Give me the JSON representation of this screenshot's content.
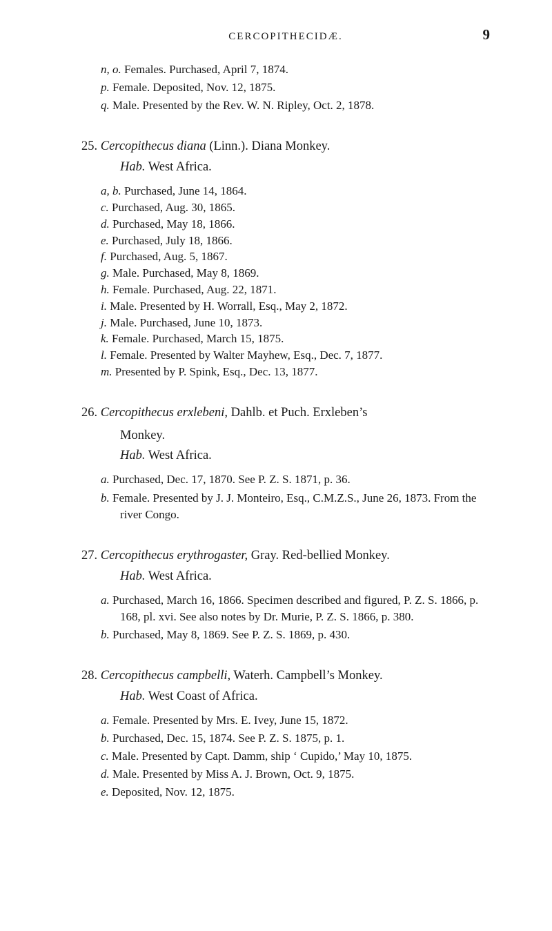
{
  "pageNumber": "9",
  "runningHead": "CERCOPITHECIDÆ.",
  "preEntries": [
    {
      "label": "n, o.",
      "text": "Females.  Purchased, April 7, 1874."
    },
    {
      "label": "p.",
      "text": "Female.  Deposited, Nov. 12, 1875."
    },
    {
      "label": "q.",
      "text": "Male.  Presented by the Rev. W. N. Ripley, Oct. 2, 1878."
    }
  ],
  "species": [
    {
      "num": "25.",
      "nameItalic": "Cercopithecus diana",
      "nameRest": " (Linn.).   Diana Monkey.",
      "hab": "Hab.",
      "habText": "  West Africa.",
      "items": [
        {
          "label": "a, b.",
          "text": "Purchased, June 14, 1864."
        },
        {
          "label": "c.",
          "text": "Purchased, Aug. 30, 1865."
        },
        {
          "label": "d.",
          "text": "Purchased, May 18, 1866."
        },
        {
          "label": "e.",
          "text": "Purchased, July 18, 1866."
        },
        {
          "label": "f.",
          "text": "Purchased, Aug. 5, 1867."
        },
        {
          "label": "g.",
          "text": "Male.  Purchased, May 8, 1869."
        },
        {
          "label": "h.",
          "text": "Female.  Purchased, Aug. 22, 1871."
        },
        {
          "label": "i.",
          "text": "Male.  Presented by H. Worrall, Esq., May 2, 1872."
        },
        {
          "label": "j.",
          "text": "Male.  Purchased, June 10, 1873."
        },
        {
          "label": "k.",
          "text": "Female.  Purchased, March 15, 1875."
        },
        {
          "label": "l.",
          "text": "Female.  Presented by Walter Mayhew, Esq., Dec. 7, 1877."
        },
        {
          "label": "m.",
          "text": "Presented by P. Spink, Esq., Dec. 13, 1877."
        }
      ]
    },
    {
      "num": "26.",
      "nameItalic": "Cercopithecus erxlebeni,",
      "nameRest": " Dahlb.  et  Puch.     Erxleben’s",
      "nameCont": "Monkey.",
      "hab": "Hab.",
      "habText": "  West Africa.",
      "items": [
        {
          "label": "a.",
          "text": "Purchased, Dec. 17, 1870.  See P. Z. S. 1871, p. 36."
        },
        {
          "label": "b.",
          "text": "Female.  Presented by J. J. Monteiro, Esq., C.M.Z.S., June 26, 1873.  From the river Congo."
        }
      ]
    },
    {
      "num": "27.",
      "nameItalic": "Cercopithecus erythrogaster,",
      "nameRest": " Gray.   Red-bellied Monkey.",
      "hab": "Hab.",
      "habText": "  West Africa.",
      "items": [
        {
          "label": "a.",
          "text": "Purchased, March 16, 1866.   Specimen described and figured, P. Z. S. 1866, p. 168, pl. xvi.  See also notes by Dr. Murie, P. Z. S. 1866, p. 380.",
          "sc": "xvi"
        },
        {
          "label": "b.",
          "text": "Purchased, May 8, 1869.  See P. Z. S. 1869, p. 430."
        }
      ]
    },
    {
      "num": "28.",
      "nameItalic": "Cercopithecus campbelli,",
      "nameRest": " Waterh.   Campbell’s Monkey.",
      "hab": "Hab.",
      "habText": "  West Coast of Africa.",
      "items": [
        {
          "label": "a.",
          "text": "Female.  Presented by Mrs. E. Ivey, June 15, 1872."
        },
        {
          "label": "b.",
          "text": "Purchased, Dec. 15, 1874.  See P. Z. S. 1875, p. 1."
        },
        {
          "label": "c.",
          "text": "Male.  Presented by Capt. Damm, ship ‘ Cupido,’ May 10, 1875."
        },
        {
          "label": "d.",
          "text": "Male.  Presented by Miss A. J. Brown, Oct. 9, 1875."
        },
        {
          "label": "e.",
          "text": "Deposited, Nov. 12, 1875."
        }
      ]
    }
  ]
}
